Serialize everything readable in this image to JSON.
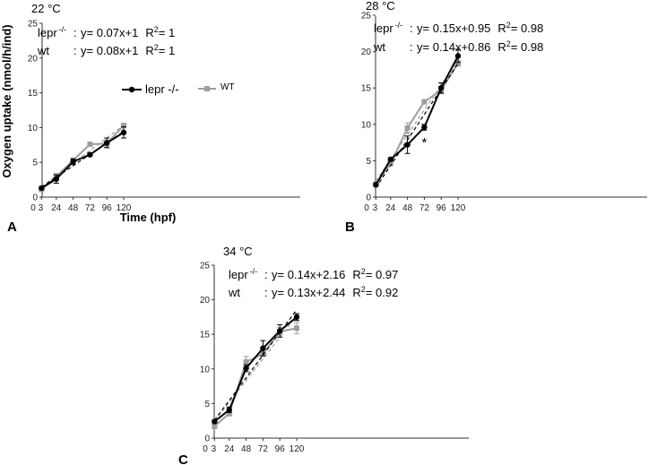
{
  "colors": {
    "lepr": "#000000",
    "wt": "#9e9e9e"
  },
  "labels": {
    "xlabel": "Time (hpf)",
    "ylabel": "Oxygen uptake (nmol/h/ind)"
  },
  "legend": {
    "lepr": "lepr -/-",
    "wt": "WT"
  },
  "chart_data": [
    {
      "type": "line",
      "panel": "A",
      "title": "22 °C",
      "x": [
        3,
        24,
        48,
        72,
        96,
        120
      ],
      "x_tick_labels": [
        "0",
        "3",
        "24",
        "48",
        "72",
        "96",
        "120"
      ],
      "ylim": [
        0,
        25
      ],
      "yticks": [
        0,
        5,
        10,
        15,
        20,
        25
      ],
      "xlabel": "Time (hpf)",
      "ylabel": "Oxygen uptake (nmol/h/ind)",
      "series": [
        {
          "name": "lepr -/-",
          "values": [
            1.3,
            2.6,
            5.1,
            6.1,
            7.8,
            9.3
          ],
          "errors": [
            0.2,
            0.6,
            0.4,
            0.2,
            0.7,
            0.8
          ],
          "fit": "y= 0.07x+1",
          "r2": "1"
        },
        {
          "name": "WT",
          "values": [
            1.1,
            3.0,
            5.3,
            7.6,
            7.7,
            10.3
          ],
          "errors": [
            0.2,
            0.4,
            0.3,
            0.3,
            0.5,
            0.3
          ],
          "fit": "y= 0.08x+1",
          "r2": "1"
        }
      ],
      "equations": [
        {
          "label": "lepr",
          "sup": "-/-",
          "fit": "y= 0.07x+1",
          "r2": "1"
        },
        {
          "label": "wt",
          "sup": "",
          "fit": "y= 0.08x+1",
          "r2": "1"
        }
      ],
      "legend_visible": true,
      "annotations": []
    },
    {
      "type": "line",
      "panel": "B",
      "title": "28 °C",
      "x": [
        3,
        24,
        48,
        72,
        96,
        120
      ],
      "x_tick_labels": [
        "0",
        "3",
        "24",
        "48",
        "72",
        "96",
        "120"
      ],
      "ylim": [
        0,
        25
      ],
      "yticks": [
        0,
        5,
        10,
        15,
        20,
        25
      ],
      "series": [
        {
          "name": "lepr -/-",
          "values": [
            1.7,
            5.2,
            7.2,
            9.6,
            15.0,
            19.4
          ],
          "errors": [
            0.2,
            0.2,
            1.2,
            0.4,
            0.7,
            0.9
          ],
          "fit": "y= 0.15x+0.95",
          "r2": "0.98"
        },
        {
          "name": "WT",
          "values": [
            1.8,
            4.6,
            9.5,
            13.1,
            14.7,
            18.4
          ],
          "errors": [
            0.2,
            0.3,
            0.7,
            0.3,
            0.5,
            0.4
          ],
          "fit": "y= 0.14x+0.86",
          "r2": "0.98"
        }
      ],
      "equations": [
        {
          "label": "lepr",
          "sup": "-/-",
          "fit": "y= 0.15x+0.95",
          "r2": "0.98"
        },
        {
          "label": "wt",
          "sup": "",
          "fit": "y= 0.14x+0.86",
          "r2": "0.98"
        }
      ],
      "legend_visible": false,
      "annotations": [
        {
          "text": "*",
          "x": 72,
          "y": 7.5
        }
      ]
    },
    {
      "type": "line",
      "panel": "C",
      "title": "34 °C",
      "x": [
        3,
        24,
        48,
        72,
        96,
        120
      ],
      "x_tick_labels": [
        "0",
        "3",
        "24",
        "48",
        "72",
        "96",
        "120"
      ],
      "ylim": [
        0,
        25
      ],
      "yticks": [
        0,
        5,
        10,
        15,
        20,
        25
      ],
      "series": [
        {
          "name": "lepr -/-",
          "values": [
            2.4,
            4.1,
            10.1,
            13.0,
            15.5,
            17.5
          ],
          "errors": [
            0.2,
            0.4,
            0.5,
            1.1,
            0.9,
            0.5
          ],
          "fit": "y= 0.14x+2.16",
          "r2": "0.97"
        },
        {
          "name": "WT",
          "values": [
            1.7,
            3.6,
            11.0,
            12.2,
            15.4,
            15.9
          ],
          "errors": [
            0.2,
            0.4,
            0.8,
            0.4,
            0.6,
            0.8
          ],
          "fit": "y= 0.13x+2.44",
          "r2": "0.92"
        }
      ],
      "equations": [
        {
          "label": "lepr",
          "sup": "-/-",
          "fit": "y= 0.14x+2.16",
          "r2": "0.97"
        },
        {
          "label": "wt",
          "sup": "",
          "fit": "y= 0.13x+2.44",
          "r2": "0.92"
        }
      ],
      "legend_visible": false,
      "annotations": []
    }
  ]
}
